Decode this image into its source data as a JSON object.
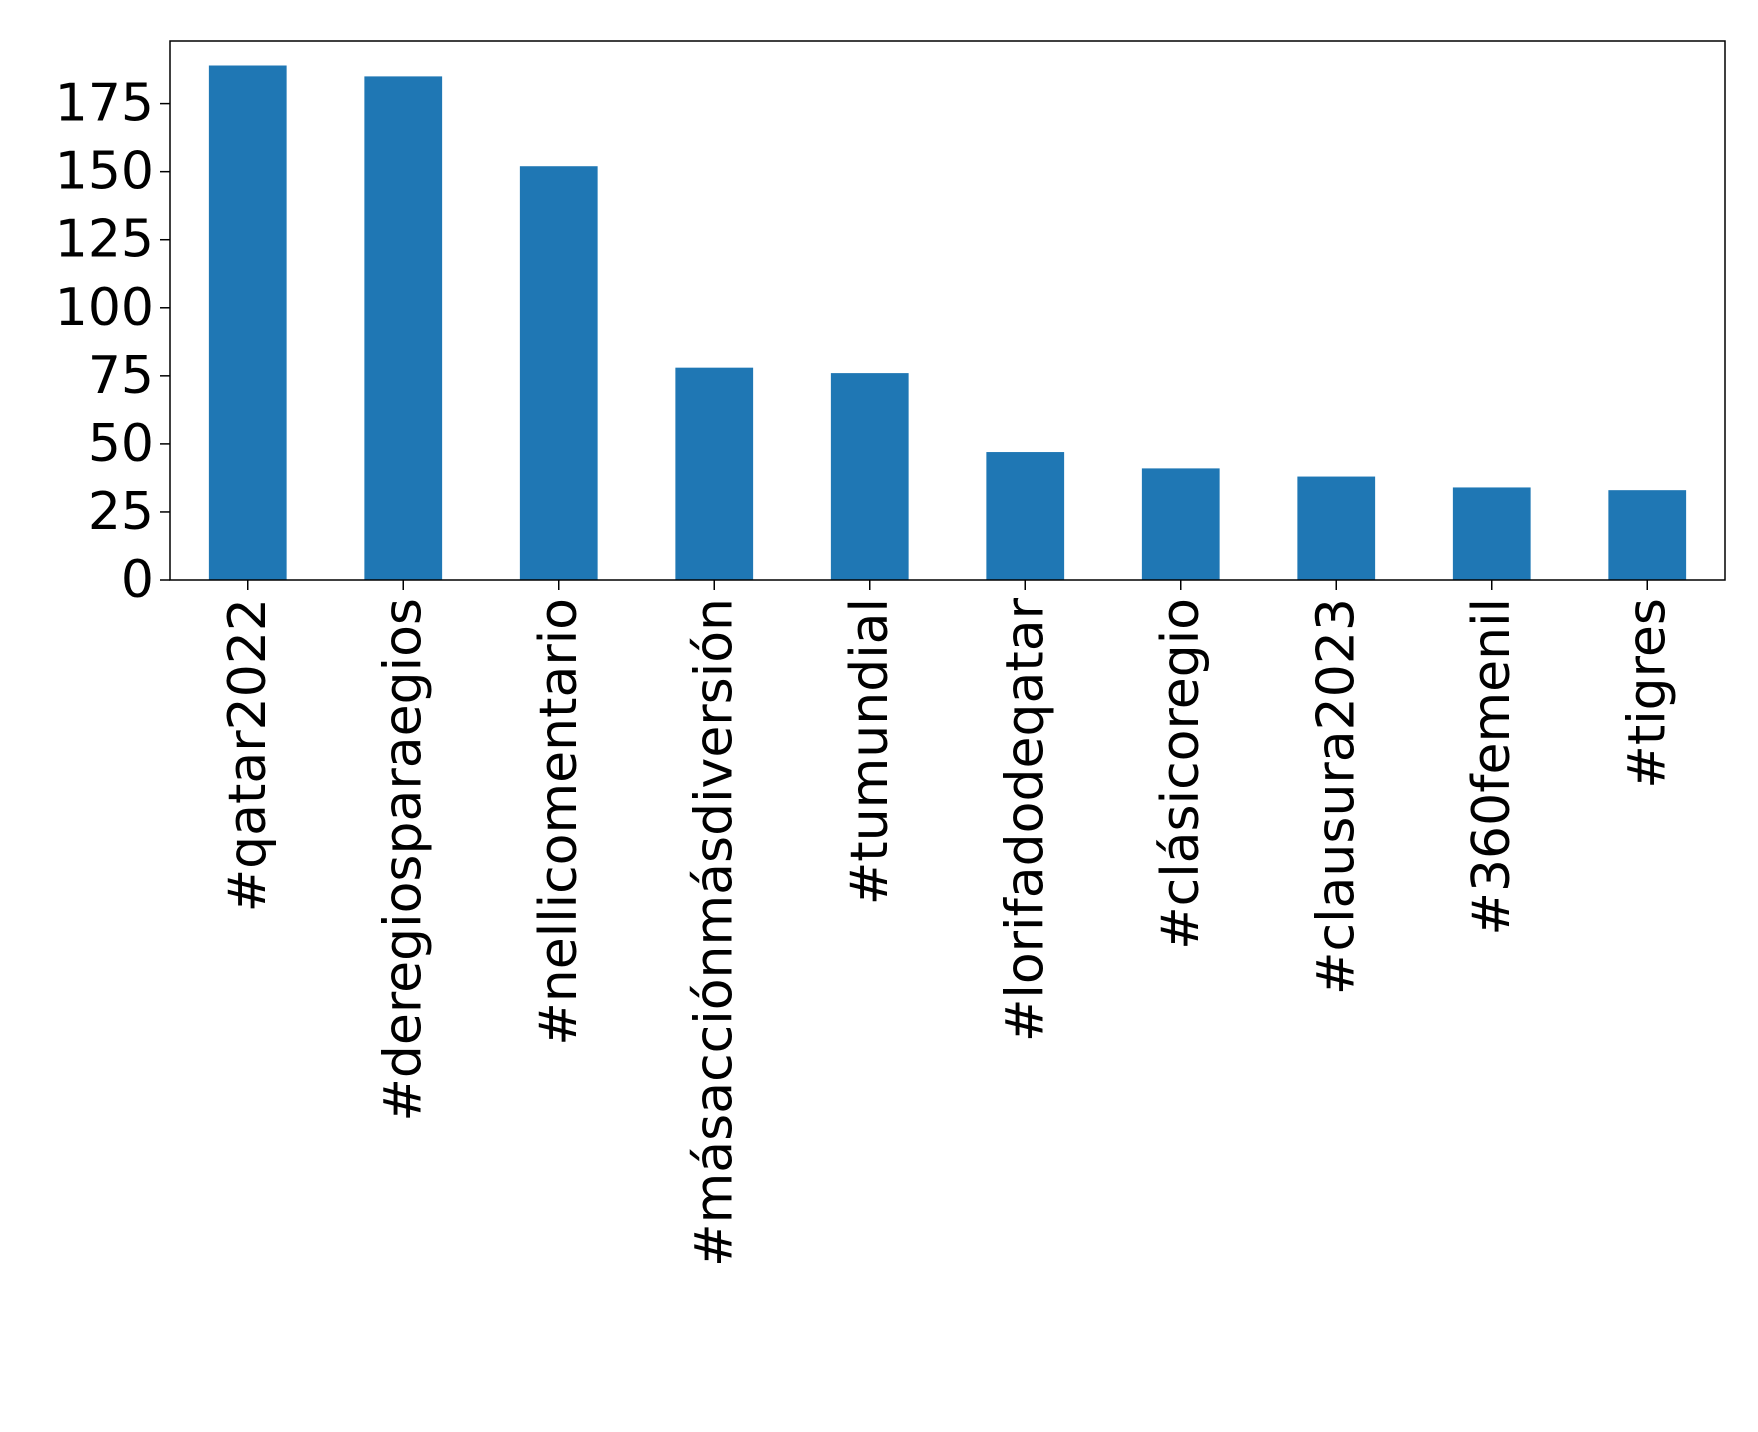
{
  "chart_data": {
    "type": "bar",
    "categories": [
      "#qatar2022",
      "#deregiosparaegios",
      "#nellicomentario",
      "#másacciónmásdiversión",
      "#tumundial",
      "#lorifadodeqatar",
      "#clásicoregio",
      "#clausura2023",
      "#360femenil",
      "#tigres"
    ],
    "values": [
      189,
      185,
      152,
      78,
      76,
      47,
      41,
      38,
      34,
      33
    ],
    "title": "",
    "xlabel": "",
    "ylabel": "",
    "ylim": [
      0,
      198
    ],
    "yticks": [
      0,
      25,
      50,
      75,
      100,
      125,
      150,
      175
    ],
    "bar_color": "#1f77b4",
    "grid": false,
    "legend": "none"
  }
}
